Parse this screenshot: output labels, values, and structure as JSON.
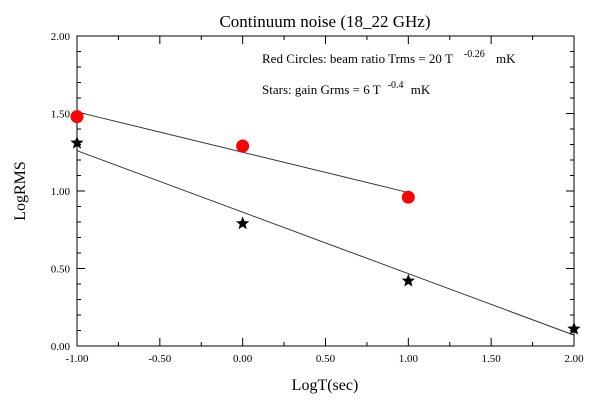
{
  "chart_data": {
    "type": "scatter",
    "title": "Continuum noise (18_22 GHz)",
    "xlabel": "LogT(sec)",
    "ylabel": "LogRMS",
    "xlim": [
      -1.0,
      2.0
    ],
    "ylim": [
      0.0,
      2.0
    ],
    "x_ticks": [
      "-1.00",
      "-0.50",
      "0.00",
      "0.50",
      "1.00",
      "1.50",
      "2.00"
    ],
    "y_ticks": [
      "0.00",
      "0.50",
      "1.00",
      "1.50",
      "2.00"
    ],
    "grid": false,
    "annotations": {
      "red": {
        "text": "Red Circles: beam ratio Trms = 20 T",
        "exponent": "-0.26",
        "unit": "mK"
      },
      "stars": {
        "text": "Stars: gain  Grms = 6 T",
        "exponent": "-0.4",
        "unit": "mK"
      }
    },
    "series": [
      {
        "marker": "circle",
        "color": "#ff0000",
        "x": [
          -1.0,
          0.0,
          1.0
        ],
        "y": [
          1.48,
          1.29,
          0.96
        ],
        "fit": {
          "x": [
            -1.0,
            1.0
          ],
          "y": [
            1.51,
            0.99
          ]
        }
      },
      {
        "marker": "star",
        "color": "#000000",
        "x": [
          -1.0,
          0.0,
          1.0,
          2.0
        ],
        "y": [
          1.31,
          0.79,
          0.42,
          0.11
        ],
        "fit": {
          "x": [
            -1.0,
            2.0
          ],
          "y": [
            1.26,
            0.07
          ]
        }
      }
    ]
  }
}
